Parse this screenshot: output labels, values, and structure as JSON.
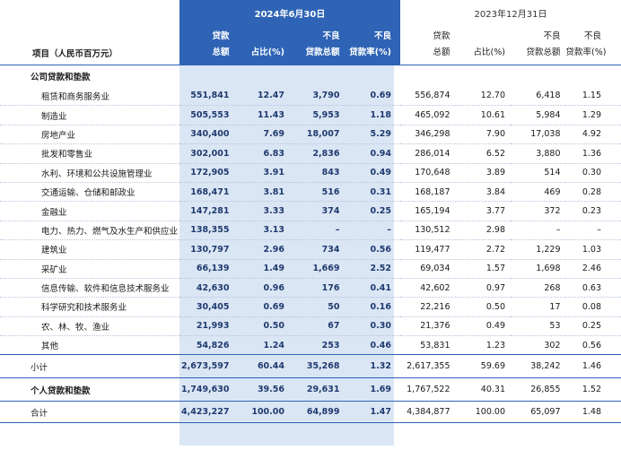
{
  "periods": {
    "current": "2024年6月30日",
    "prior": "2023年12月31日"
  },
  "headers": {
    "item": "项目（人民币百万元）",
    "cur_loans": [
      "贷款",
      "总额"
    ],
    "cur_pct": "占比(%)",
    "cur_npl": [
      "不良",
      "贷款总额"
    ],
    "cur_nplr": [
      "不良",
      "贷款率(%)"
    ],
    "pri_loans": [
      "贷款",
      "总额"
    ],
    "pri_pct": "占比(%)",
    "pri_npl": [
      "不良",
      "贷款总额"
    ],
    "pri_nplr": [
      "不良",
      "贷款率(%)"
    ]
  },
  "section_title": "公司贷款和垫款",
  "rows": [
    {
      "name": "租赁和商务服务业",
      "v": [
        "551,841",
        "12.47",
        "3,790",
        "0.69",
        "556,874",
        "12.70",
        "6,418",
        "1.15"
      ]
    },
    {
      "name": "制造业",
      "v": [
        "505,553",
        "11.43",
        "5,953",
        "1.18",
        "465,092",
        "10.61",
        "5,984",
        "1.29"
      ]
    },
    {
      "name": "房地产业",
      "v": [
        "340,400",
        "7.69",
        "18,007",
        "5.29",
        "346,298",
        "7.90",
        "17,038",
        "4.92"
      ]
    },
    {
      "name": "批发和零售业",
      "v": [
        "302,001",
        "6.83",
        "2,836",
        "0.94",
        "286,014",
        "6.52",
        "3,880",
        "1.36"
      ]
    },
    {
      "name": "水利、环境和公共设施管理业",
      "v": [
        "172,905",
        "3.91",
        "843",
        "0.49",
        "170,648",
        "3.89",
        "514",
        "0.30"
      ]
    },
    {
      "name": "交通运输、仓储和邮政业",
      "v": [
        "168,471",
        "3.81",
        "516",
        "0.31",
        "168,187",
        "3.84",
        "469",
        "0.28"
      ]
    },
    {
      "name": "金融业",
      "v": [
        "147,281",
        "3.33",
        "374",
        "0.25",
        "165,194",
        "3.77",
        "372",
        "0.23"
      ]
    },
    {
      "name": "电力、热力、燃气及水生产和供应业",
      "v": [
        "138,355",
        "3.13",
        "–",
        "–",
        "130,512",
        "2.98",
        "–",
        "–"
      ]
    },
    {
      "name": "建筑业",
      "v": [
        "130,797",
        "2.96",
        "734",
        "0.56",
        "119,477",
        "2.72",
        "1,229",
        "1.03"
      ]
    },
    {
      "name": "采矿业",
      "v": [
        "66,139",
        "1.49",
        "1,669",
        "2.52",
        "69,034",
        "1.57",
        "1,698",
        "2.46"
      ]
    },
    {
      "name": "信息传输、软件和信息技术服务业",
      "v": [
        "42,630",
        "0.96",
        "176",
        "0.41",
        "42,602",
        "0.97",
        "268",
        "0.63"
      ]
    },
    {
      "name": "科学研究和技术服务业",
      "v": [
        "30,405",
        "0.69",
        "50",
        "0.16",
        "22,216",
        "0.50",
        "17",
        "0.08"
      ]
    },
    {
      "name": "农、林、牧、渔业",
      "v": [
        "21,993",
        "0.50",
        "67",
        "0.30",
        "21,376",
        "0.49",
        "53",
        "0.25"
      ]
    },
    {
      "name": "其他",
      "v": [
        "54,826",
        "1.24",
        "253",
        "0.46",
        "53,831",
        "1.23",
        "302",
        "0.56"
      ]
    }
  ],
  "subtotal": {
    "name": "小计",
    "v": [
      "2,673,597",
      "60.44",
      "35,268",
      "1.32",
      "2,617,355",
      "59.69",
      "38,242",
      "1.46"
    ]
  },
  "personal": {
    "name": "个人贷款和垫款",
    "v": [
      "1,749,630",
      "39.56",
      "29,631",
      "1.69",
      "1,767,522",
      "40.31",
      "26,855",
      "1.52"
    ]
  },
  "total": {
    "name": "合计",
    "v": [
      "4,423,227",
      "100.00",
      "64,899",
      "1.47",
      "4,384,877",
      "100.00",
      "65,097",
      "1.48"
    ]
  },
  "colors": {
    "accent": "#2e63b5",
    "highlight": "#dbe6f5"
  }
}
